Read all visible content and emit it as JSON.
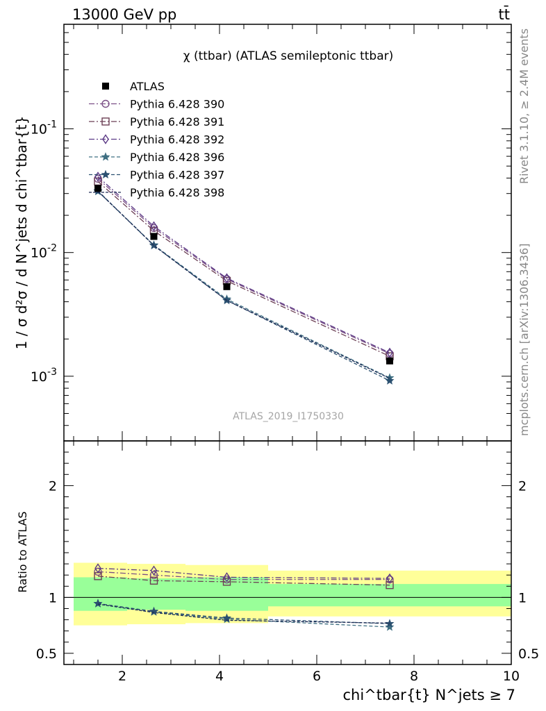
{
  "header": {
    "left_label": "13000 GeV pp",
    "right_label": "tt̄"
  },
  "side_labels": {
    "rivet": "Rivet 3.1.10, ≥ 2.4M events",
    "mcplots": "mcplots.cern.ch [arXiv:1306.3436]"
  },
  "watermark": "ATLAS_2019_I1750330",
  "chart_data": [
    {
      "type": "line",
      "panel": "main",
      "title": "χ (ttbar) (ATLAS semileptonic ttbar)",
      "ylabel": "1 / σ d²σ / d N^jets d chi^tbar{t}",
      "yscale": "log",
      "ylim": [
        0.0003,
        0.7
      ],
      "xlim": [
        0.8,
        10.0
      ],
      "y_tick_labels": [
        "10^-3",
        "10^-2",
        "10^-1"
      ],
      "legend_position": "top-left",
      "data": {
        "name": "ATLAS",
        "x": [
          1.5,
          2.65,
          4.15,
          7.5
        ],
        "y": [
          0.033,
          0.0135,
          0.0053,
          0.00133
        ],
        "x_err": [
          [
            1.0,
            2.1
          ],
          [
            2.1,
            3.3
          ],
          [
            3.3,
            5.0
          ],
          [
            5.0,
            10.0
          ]
        ]
      },
      "series": [
        {
          "name": "Pythia 6.428 390",
          "color": "#7b4f86",
          "marker": "circle",
          "dash": "8,3,2,3",
          "x": [
            1.5,
            2.65,
            4.15,
            7.5
          ],
          "y": [
            0.0395,
            0.0158,
            0.0061,
            0.00152
          ]
        },
        {
          "name": "Pythia 6.428 391",
          "color": "#6b3f54",
          "marker": "square",
          "dash": "8,3,2,3",
          "x": [
            1.5,
            2.65,
            4.15,
            7.5
          ],
          "y": [
            0.0375,
            0.015,
            0.0059,
            0.00145
          ]
        },
        {
          "name": "Pythia 6.428 392",
          "color": "#5c3a86",
          "marker": "diamond",
          "dash": "8,3,2,3",
          "x": [
            1.5,
            2.65,
            4.15,
            7.5
          ],
          "y": [
            0.041,
            0.0163,
            0.0062,
            0.00155
          ]
        },
        {
          "name": "Pythia 6.428 396",
          "color": "#3f6f82",
          "marker": "star",
          "dash": "5,3",
          "x": [
            1.5,
            2.65,
            4.15,
            7.5
          ],
          "y": [
            0.0312,
            0.0115,
            0.0042,
            0.00097
          ]
        },
        {
          "name": "Pythia 6.428 397",
          "color": "#2b5070",
          "marker": "star",
          "dash": "5,3",
          "x": [
            1.5,
            2.65,
            4.15,
            7.5
          ],
          "y": [
            0.0315,
            0.0114,
            0.0041,
            0.00092
          ]
        },
        {
          "name": "Pythia 6.428 398",
          "color": "#1d2b55",
          "marker": "none",
          "dash": "4,2",
          "x": [
            1.5,
            2.65,
            4.15,
            7.5
          ],
          "y": [
            0.0313,
            0.0114,
            0.0041,
            0.00096
          ]
        }
      ]
    },
    {
      "type": "line",
      "panel": "ratio",
      "xlabel": "chi^tbar{t} N^jets ≥ 7",
      "ylabel": "Ratio to ATLAS",
      "ylim": [
        0.4,
        2.4
      ],
      "xlim": [
        0.8,
        10.0
      ],
      "x_tick_labels": [
        "2",
        "4",
        "6",
        "8",
        "10"
      ],
      "y_tick_labels": [
        "0.5",
        "1",
        "2"
      ],
      "uncertainty_bands": [
        {
          "x": [
            1.0,
            2.1
          ],
          "inner": [
            0.88,
            1.18
          ],
          "outer": [
            0.75,
            1.31
          ]
        },
        {
          "x": [
            2.1,
            3.3
          ],
          "inner": [
            0.89,
            1.17
          ],
          "outer": [
            0.76,
            1.3
          ]
        },
        {
          "x": [
            3.3,
            5.0
          ],
          "inner": [
            0.88,
            1.18
          ],
          "outer": [
            0.77,
            1.29
          ]
        },
        {
          "x": [
            5.0,
            10.0
          ],
          "inner": [
            0.92,
            1.12
          ],
          "outer": [
            0.83,
            1.24
          ]
        }
      ],
      "series": [
        {
          "name": "Pythia 6.428 390",
          "x": [
            1.5,
            2.65,
            4.15,
            7.5
          ],
          "y": [
            1.23,
            1.2,
            1.16,
            1.16
          ]
        },
        {
          "name": "Pythia 6.428 391",
          "x": [
            1.5,
            2.65,
            4.15,
            7.5
          ],
          "y": [
            1.19,
            1.15,
            1.14,
            1.11
          ]
        },
        {
          "name": "Pythia 6.428 392",
          "x": [
            1.5,
            2.65,
            4.15,
            7.5
          ],
          "y": [
            1.26,
            1.24,
            1.18,
            1.17
          ]
        },
        {
          "name": "Pythia 6.428 396",
          "x": [
            1.5,
            2.65,
            4.15,
            7.5
          ],
          "y": [
            0.945,
            0.87,
            0.805,
            0.735
          ]
        },
        {
          "name": "Pythia 6.428 397",
          "x": [
            1.5,
            2.65,
            4.15,
            7.5
          ],
          "y": [
            0.945,
            0.875,
            0.815,
            0.765
          ]
        },
        {
          "name": "Pythia 6.428 398",
          "x": [
            1.5,
            2.65,
            4.15,
            7.5
          ],
          "y": [
            0.94,
            0.865,
            0.795,
            0.77
          ]
        }
      ]
    }
  ]
}
